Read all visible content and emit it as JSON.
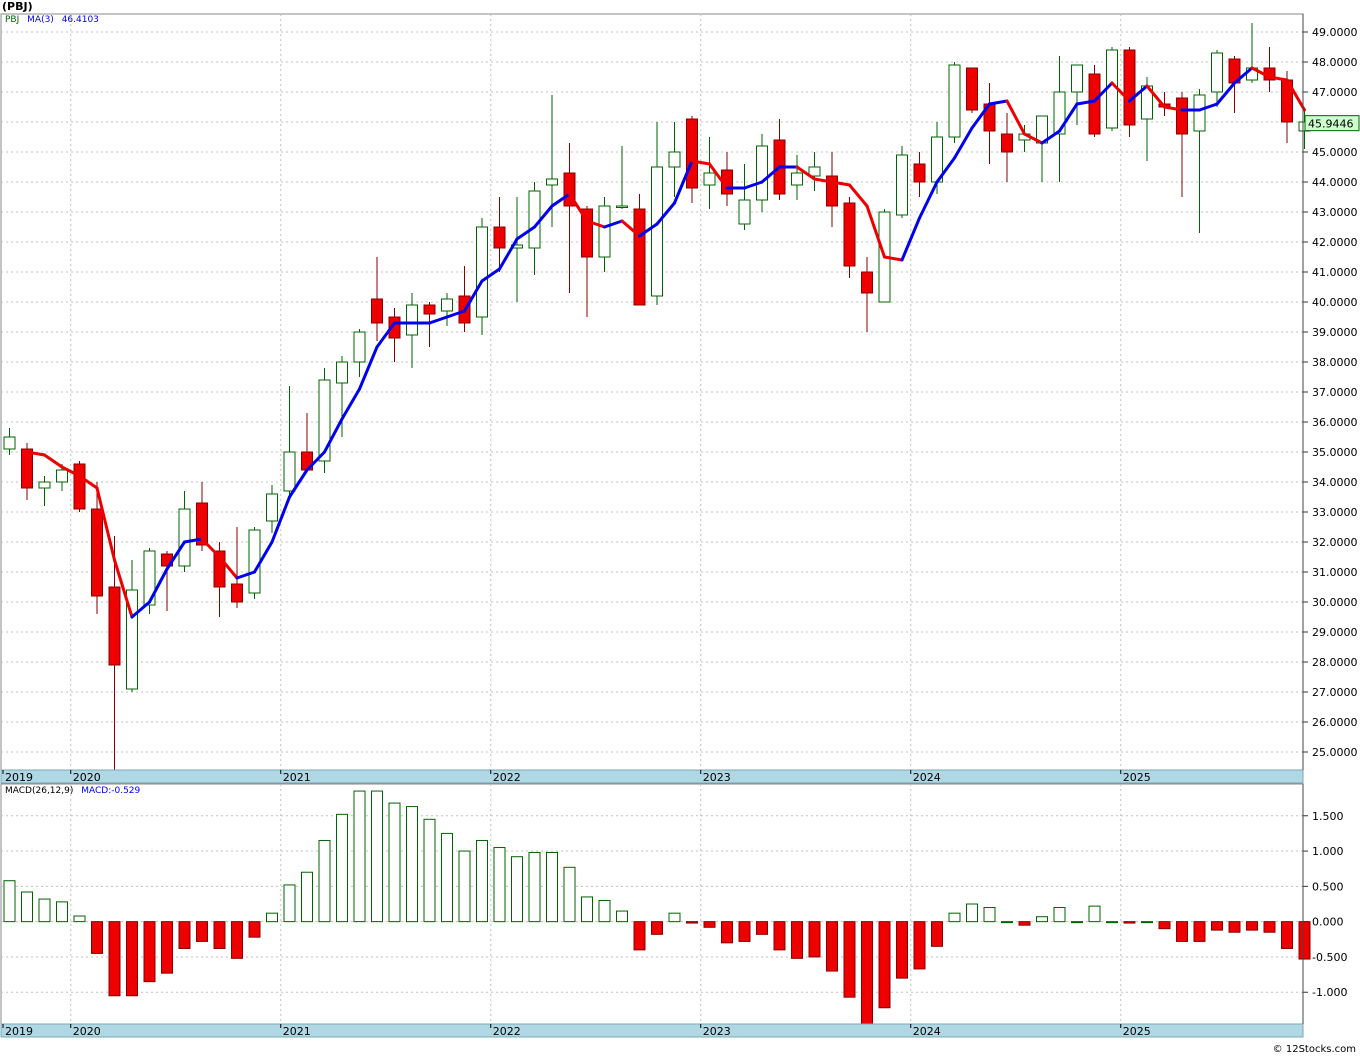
{
  "title": "(PBJ)",
  "credit": "© 12Stocks.com",
  "price_panel": {
    "legend": {
      "symbol": "PBJ",
      "ma_label": "MA(3)",
      "ma_value": "46.4103"
    },
    "last_price_label": "45.9446",
    "ylim": [
      24.4,
      49.6
    ],
    "y_ticks": [
      25,
      26,
      27,
      28,
      29,
      30,
      31,
      32,
      33,
      34,
      35,
      36,
      37,
      38,
      39,
      40,
      41,
      42,
      43,
      44,
      45,
      46,
      47,
      48,
      49
    ],
    "y_tick_labels": [
      "25.0000",
      "26.0000",
      "27.0000",
      "28.0000",
      "29.0000",
      "30.0000",
      "31.0000",
      "32.0000",
      "33.0000",
      "34.0000",
      "35.0000",
      "36.0000",
      "37.0000",
      "38.0000",
      "39.0000",
      "40.0000",
      "41.0000",
      "42.0000",
      "43.0000",
      "44.0000",
      "45.0000",
      "46.0000",
      "47.0000",
      "48.0000",
      "49.0000"
    ]
  },
  "macd_panel": {
    "legend": {
      "label": "MACD(26,12,9)",
      "value_label": "MACD:-0.529"
    },
    "ylim": [
      -1.45,
      1.95
    ],
    "y_ticks": [
      1.5,
      1.0,
      0.5,
      0.0,
      -0.5,
      -1.0
    ],
    "y_tick_labels": [
      "1.500",
      "1.000",
      "0.500",
      "0.000",
      "-0.500",
      "-1.000"
    ]
  },
  "x_axis": {
    "year_labels": [
      "2019",
      "2020",
      "2021",
      "2022",
      "2023",
      "2024",
      "2025"
    ],
    "year_positions": [
      -4.5,
      3.5,
      15.5,
      27.5,
      39.5,
      51.5,
      63.5
    ]
  },
  "colors": {
    "up_stroke": "#006400",
    "up_fill": "#ffffff",
    "down_fill": "#ee0000",
    "down_stroke": "#880000",
    "ma_up": "#0000ee",
    "ma_down": "#ee0000",
    "axis_band": "#b0d8e4",
    "grid": "#c0c0c0",
    "label_box_fill": "#ccffcc"
  },
  "chart_data": {
    "type": "candlestick",
    "period": "monthly",
    "series": [
      {
        "name": "PBJ",
        "ohlc": [
          [
            35.1,
            35.8,
            34.9,
            35.5
          ],
          [
            35.1,
            35.3,
            33.4,
            33.8
          ],
          [
            33.8,
            34.2,
            33.2,
            34.0
          ],
          [
            34.0,
            34.6,
            33.7,
            34.4
          ],
          [
            34.6,
            34.7,
            33.0,
            33.1
          ],
          [
            33.1,
            34.0,
            29.6,
            30.2
          ],
          [
            30.5,
            32.2,
            24.4,
            27.9
          ],
          [
            27.1,
            31.4,
            27.0,
            30.4
          ],
          [
            29.9,
            31.8,
            29.6,
            31.7
          ],
          [
            31.6,
            31.7,
            29.7,
            31.2
          ],
          [
            31.2,
            33.7,
            31.0,
            33.1
          ],
          [
            33.3,
            34.0,
            31.7,
            31.9
          ],
          [
            31.7,
            32.0,
            29.5,
            30.5
          ],
          [
            30.6,
            32.5,
            29.8,
            30.0
          ],
          [
            30.3,
            32.5,
            30.1,
            32.4
          ],
          [
            32.7,
            33.9,
            32.3,
            33.6
          ],
          [
            33.7,
            37.2,
            33.5,
            35.0
          ],
          [
            35.0,
            36.3,
            34.5,
            34.4
          ],
          [
            34.7,
            37.8,
            34.3,
            37.4
          ],
          [
            37.3,
            38.2,
            35.5,
            38.0
          ],
          [
            38.0,
            39.1,
            37.5,
            39.0
          ],
          [
            40.1,
            41.5,
            38.7,
            39.3
          ],
          [
            39.5,
            39.8,
            38.0,
            38.8
          ],
          [
            38.9,
            40.3,
            37.8,
            39.9
          ],
          [
            39.9,
            40.0,
            38.5,
            39.6
          ],
          [
            39.7,
            40.3,
            39.2,
            40.1
          ],
          [
            40.2,
            41.2,
            39.0,
            39.3
          ],
          [
            39.5,
            42.8,
            38.9,
            42.5
          ],
          [
            42.5,
            43.5,
            41.0,
            41.8
          ],
          [
            41.8,
            43.5,
            40.0,
            41.9
          ],
          [
            41.8,
            44.0,
            40.9,
            43.7
          ],
          [
            43.9,
            46.9,
            42.5,
            44.1
          ],
          [
            44.3,
            45.3,
            40.3,
            43.2
          ],
          [
            43.1,
            43.2,
            39.5,
            41.5
          ],
          [
            41.5,
            43.5,
            41.0,
            43.2
          ],
          [
            43.2,
            45.2,
            43.1,
            43.2
          ],
          [
            43.1,
            43.6,
            39.9,
            39.9
          ],
          [
            40.2,
            46.0,
            39.9,
            44.5
          ],
          [
            44.5,
            46.0,
            43.5,
            45.0
          ],
          [
            46.1,
            46.2,
            43.3,
            43.8
          ],
          [
            43.9,
            45.5,
            43.1,
            44.3
          ],
          [
            44.4,
            45.0,
            43.2,
            43.6
          ],
          [
            42.6,
            44.6,
            42.4,
            43.4
          ],
          [
            43.4,
            45.6,
            43.0,
            45.2
          ],
          [
            45.4,
            46.1,
            43.4,
            43.6
          ],
          [
            43.9,
            44.9,
            43.4,
            44.3
          ],
          [
            44.2,
            45.0,
            43.7,
            44.5
          ],
          [
            44.2,
            45.0,
            42.5,
            43.2
          ],
          [
            43.3,
            43.5,
            40.8,
            41.2
          ],
          [
            41.0,
            41.5,
            39.0,
            40.3
          ],
          [
            40.0,
            43.1,
            40.0,
            43.0
          ],
          [
            42.9,
            45.2,
            42.8,
            44.9
          ],
          [
            44.6,
            45.0,
            43.5,
            44.0
          ],
          [
            44.0,
            46.0,
            43.6,
            45.5
          ],
          [
            45.5,
            48.0,
            45.3,
            47.9
          ],
          [
            47.8,
            47.8,
            46.3,
            46.4
          ],
          [
            46.6,
            47.3,
            44.6,
            45.7
          ],
          [
            45.6,
            46.3,
            44.0,
            45.0
          ],
          [
            45.4,
            45.9,
            45.0,
            45.6
          ],
          [
            45.3,
            46.2,
            44.0,
            46.2
          ],
          [
            45.6,
            48.2,
            44.0,
            47.0
          ],
          [
            47.0,
            47.9,
            45.9,
            47.9
          ],
          [
            47.6,
            47.9,
            45.5,
            45.6
          ],
          [
            45.8,
            48.5,
            45.7,
            48.4
          ],
          [
            48.4,
            48.5,
            45.5,
            45.9
          ],
          [
            46.1,
            47.5,
            44.7,
            47.2
          ],
          [
            46.6,
            47.0,
            46.2,
            46.5
          ],
          [
            46.8,
            47.0,
            43.5,
            45.6
          ],
          [
            45.7,
            47.1,
            42.3,
            46.9
          ],
          [
            47.0,
            48.4,
            46.5,
            48.3
          ],
          [
            48.1,
            48.2,
            46.3,
            47.3
          ],
          [
            47.4,
            49.3,
            47.3,
            47.8
          ],
          [
            47.8,
            48.5,
            47.0,
            47.4
          ],
          [
            47.4,
            47.7,
            45.3,
            46.0
          ],
          [
            45.7,
            46.4,
            45.1,
            46.0
          ]
        ]
      },
      {
        "name": "MA(3)",
        "values": [
          null,
          35.0,
          34.9,
          34.5,
          34.2,
          33.8,
          31.4,
          29.5,
          30.0,
          31.1,
          32.0,
          32.1,
          31.5,
          30.8,
          31.0,
          32.0,
          33.5,
          34.4,
          35.0,
          36.1,
          37.1,
          38.5,
          39.3,
          39.3,
          39.3,
          39.5,
          39.7,
          40.7,
          41.1,
          42.1,
          42.5,
          43.2,
          43.6,
          42.7,
          42.5,
          42.7,
          42.2,
          42.6,
          43.3,
          44.7,
          44.6,
          43.8,
          43.8,
          44.0,
          44.5,
          44.5,
          44.1,
          44.0,
          43.9,
          43.2,
          41.5,
          41.4,
          42.8,
          44.0,
          44.8,
          45.8,
          46.6,
          46.7,
          45.6,
          45.3,
          45.7,
          46.6,
          46.7,
          47.3,
          46.7,
          47.2,
          46.5,
          46.4,
          46.4,
          46.6,
          47.3,
          47.8,
          47.5,
          47.4,
          46.4
        ]
      },
      {
        "name": "MACD",
        "values": [
          0.58,
          0.42,
          0.32,
          0.28,
          0.08,
          -0.45,
          -1.05,
          -1.05,
          -0.85,
          -0.73,
          -0.38,
          -0.28,
          -0.38,
          -0.52,
          -0.22,
          0.12,
          0.52,
          0.7,
          1.15,
          1.52,
          1.85,
          1.85,
          1.68,
          1.63,
          1.45,
          1.25,
          1.0,
          1.15,
          1.05,
          0.92,
          0.98,
          0.98,
          0.77,
          0.35,
          0.3,
          0.15,
          -0.4,
          -0.18,
          0.12,
          -0.02,
          -0.08,
          -0.3,
          -0.28,
          -0.18,
          -0.4,
          -0.52,
          -0.5,
          -0.7,
          -1.07,
          -1.45,
          -1.22,
          -0.8,
          -0.67,
          -0.35,
          0.12,
          0.25,
          0.2,
          0.0,
          -0.05,
          0.07,
          0.2,
          0.0,
          0.22,
          0.0,
          -0.02,
          0.0,
          -0.1,
          -0.28,
          -0.28,
          -0.12,
          -0.15,
          -0.12,
          -0.15,
          -0.38,
          -0.53
        ]
      }
    ]
  }
}
